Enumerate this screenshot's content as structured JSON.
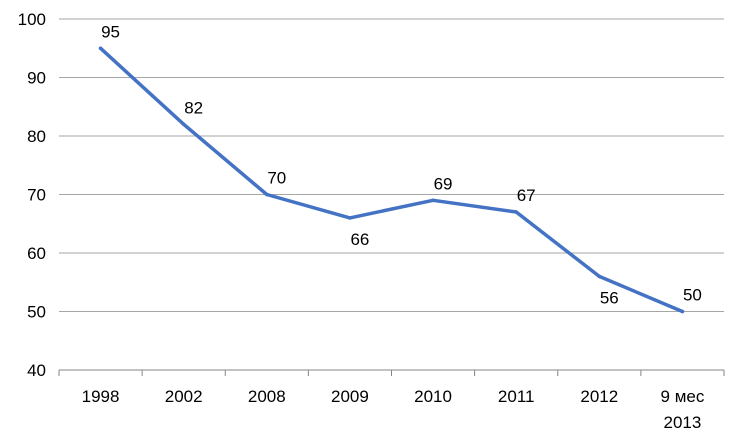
{
  "chart_data": {
    "type": "line",
    "categories": [
      "1998",
      "2002",
      "2008",
      "2009",
      "2010",
      "2011",
      "2012",
      "9 мес 2013"
    ],
    "series": [
      {
        "values": [
          95,
          82,
          70,
          66,
          69,
          67,
          56,
          50
        ]
      }
    ],
    "ylim": [
      40,
      100
    ],
    "yticks": [
      40,
      50,
      60,
      70,
      80,
      90,
      100
    ],
    "grid": true,
    "legend": "none",
    "line_color": "#4472c4",
    "grid_color": "#a6a6a6"
  }
}
